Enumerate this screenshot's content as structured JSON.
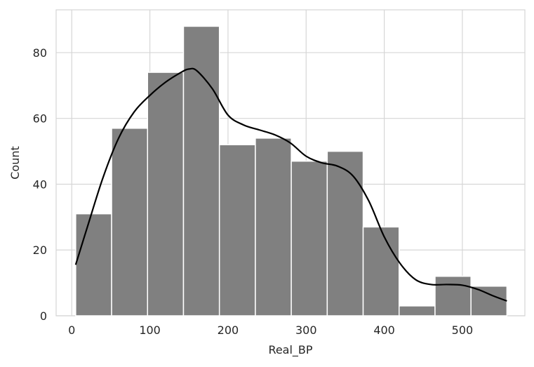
{
  "chart_data": {
    "type": "bar",
    "subtype": "histogram-with-kde",
    "title": "",
    "xlabel": "Real_BP",
    "ylabel": "Count",
    "xlim": [
      -20,
      580
    ],
    "ylim": [
      0,
      93
    ],
    "x_ticks": [
      0,
      100,
      200,
      300,
      400,
      500
    ],
    "y_ticks": [
      0,
      20,
      40,
      60,
      80
    ],
    "grid": true,
    "bar_color": "#808080",
    "line_color": "#000000",
    "grid_color": "#d6d6d6",
    "bins": [
      {
        "x0": 5,
        "x1": 51,
        "count": 31
      },
      {
        "x0": 51,
        "x1": 97,
        "count": 57
      },
      {
        "x0": 97,
        "x1": 143,
        "count": 74
      },
      {
        "x0": 143,
        "x1": 189,
        "count": 88
      },
      {
        "x0": 189,
        "x1": 235,
        "count": 52
      },
      {
        "x0": 235,
        "x1": 281,
        "count": 54
      },
      {
        "x0": 281,
        "x1": 327,
        "count": 47
      },
      {
        "x0": 327,
        "x1": 373,
        "count": 50
      },
      {
        "x0": 373,
        "x1": 419,
        "count": 27
      },
      {
        "x0": 419,
        "x1": 465,
        "count": 3
      },
      {
        "x0": 465,
        "x1": 511,
        "count": 12
      },
      {
        "x0": 511,
        "x1": 557,
        "count": 9
      }
    ],
    "kde": {
      "x": [
        5,
        20,
        40,
        60,
        80,
        100,
        120,
        140,
        150,
        160,
        180,
        200,
        220,
        240,
        260,
        280,
        300,
        320,
        340,
        360,
        380,
        400,
        420,
        440,
        460,
        480,
        500,
        520,
        540,
        557
      ],
      "y": [
        15.5,
        27,
        42,
        54,
        62,
        67,
        71,
        74,
        75,
        74.5,
        69,
        61,
        58,
        56.5,
        55,
        52.5,
        48.5,
        46.5,
        45.5,
        42.5,
        35,
        24,
        16,
        11,
        9.5,
        9.5,
        9.3,
        8,
        6,
        4.5
      ]
    }
  }
}
